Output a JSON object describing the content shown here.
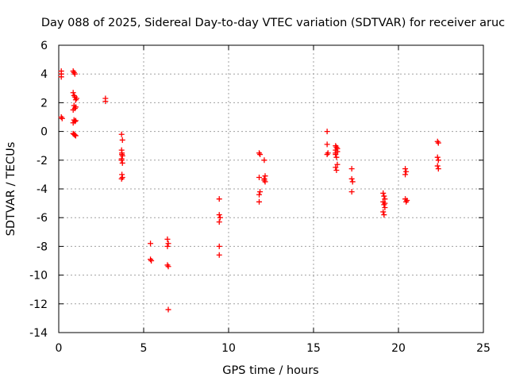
{
  "chart_data": {
    "type": "scatter",
    "title": "Day 088 of 2025, Sidereal Day-to-day VTEC variation (SDTVAR) for receiver aruc",
    "xlabel": "GPS time / hours",
    "ylabel": "SDTVAR / TECUs",
    "xlim": [
      0,
      25
    ],
    "ylim": [
      -14,
      6
    ],
    "xticks": [
      "0",
      "5",
      "10",
      "15",
      "20",
      "25"
    ],
    "yticks": [
      "-14",
      "-12",
      "-10",
      "-8",
      "-6",
      "-4",
      "-2",
      "0",
      "2",
      "4",
      "6"
    ],
    "grid": true,
    "marker": "plus",
    "series": [
      {
        "name": "SDTVAR",
        "color": "#ff0000",
        "points": [
          [
            0.15,
            4.2
          ],
          [
            0.15,
            4.0
          ],
          [
            0.15,
            3.8
          ],
          [
            0.15,
            1.0
          ],
          [
            0.2,
            0.9
          ],
          [
            0.85,
            4.2
          ],
          [
            0.9,
            4.1
          ],
          [
            0.95,
            4.0
          ],
          [
            0.85,
            2.7
          ],
          [
            0.9,
            2.5
          ],
          [
            0.95,
            2.4
          ],
          [
            1.0,
            2.2
          ],
          [
            1.05,
            2.3
          ],
          [
            0.9,
            1.8
          ],
          [
            0.95,
            1.6
          ],
          [
            1.0,
            1.7
          ],
          [
            0.85,
            1.5
          ],
          [
            0.9,
            0.8
          ],
          [
            0.95,
            0.7
          ],
          [
            1.0,
            0.75
          ],
          [
            0.85,
            0.6
          ],
          [
            0.9,
            -0.2
          ],
          [
            0.95,
            -0.25
          ],
          [
            1.0,
            -0.3
          ],
          [
            0.85,
            -0.15
          ],
          [
            2.75,
            2.3
          ],
          [
            2.75,
            2.1
          ],
          [
            3.7,
            -0.2
          ],
          [
            3.75,
            -0.6
          ],
          [
            3.7,
            -1.3
          ],
          [
            3.72,
            -1.5
          ],
          [
            3.75,
            -1.7
          ],
          [
            3.7,
            -1.9
          ],
          [
            3.75,
            -2.2
          ],
          [
            3.7,
            -2.0
          ],
          [
            3.72,
            -3.0
          ],
          [
            3.75,
            -3.2
          ],
          [
            3.7,
            -3.3
          ],
          [
            3.72,
            -1.6
          ],
          [
            5.4,
            -7.8
          ],
          [
            5.4,
            -8.9
          ],
          [
            5.45,
            -9.0
          ],
          [
            6.4,
            -7.5
          ],
          [
            6.45,
            -7.8
          ],
          [
            6.4,
            -8.0
          ],
          [
            6.4,
            -9.3
          ],
          [
            6.45,
            -9.4
          ],
          [
            6.45,
            -12.4
          ],
          [
            9.45,
            -4.7
          ],
          [
            9.45,
            -5.8
          ],
          [
            9.5,
            -6.0
          ],
          [
            9.45,
            -6.3
          ],
          [
            9.45,
            -8.0
          ],
          [
            9.45,
            -8.6
          ],
          [
            11.8,
            -1.5
          ],
          [
            11.85,
            -1.6
          ],
          [
            11.8,
            -3.2
          ],
          [
            11.85,
            -4.2
          ],
          [
            11.8,
            -4.4
          ],
          [
            11.8,
            -4.9
          ],
          [
            12.1,
            -2.0
          ],
          [
            12.15,
            -3.1
          ],
          [
            12.1,
            -3.3
          ],
          [
            12.15,
            -3.5
          ],
          [
            12.1,
            -3.4
          ],
          [
            15.8,
            0.0
          ],
          [
            15.8,
            -0.9
          ],
          [
            15.85,
            -1.5
          ],
          [
            15.8,
            -1.6
          ],
          [
            16.3,
            -1.0
          ],
          [
            16.35,
            -1.1
          ],
          [
            16.3,
            -1.3
          ],
          [
            16.4,
            -1.4
          ],
          [
            16.3,
            -1.6
          ],
          [
            16.35,
            -1.8
          ],
          [
            16.4,
            -2.3
          ],
          [
            16.3,
            -2.5
          ],
          [
            16.35,
            -2.7
          ],
          [
            16.3,
            -1.5
          ],
          [
            16.4,
            -1.2
          ],
          [
            17.25,
            -2.6
          ],
          [
            17.25,
            -3.3
          ],
          [
            17.3,
            -3.5
          ],
          [
            17.25,
            -4.2
          ],
          [
            19.1,
            -4.3
          ],
          [
            19.15,
            -4.5
          ],
          [
            19.2,
            -4.7
          ],
          [
            19.1,
            -4.9
          ],
          [
            19.15,
            -5.1
          ],
          [
            19.2,
            -5.3
          ],
          [
            19.1,
            -5.6
          ],
          [
            19.15,
            -5.8
          ],
          [
            19.2,
            -5.0
          ],
          [
            20.4,
            -2.6
          ],
          [
            20.45,
            -2.8
          ],
          [
            20.4,
            -3.0
          ],
          [
            20.4,
            -4.7
          ],
          [
            20.45,
            -4.9
          ],
          [
            20.5,
            -4.8
          ],
          [
            22.3,
            -0.7
          ],
          [
            22.35,
            -0.8
          ],
          [
            22.3,
            -1.8
          ],
          [
            22.35,
            -2.0
          ],
          [
            22.3,
            -2.4
          ],
          [
            22.35,
            -2.6
          ]
        ]
      }
    ]
  }
}
